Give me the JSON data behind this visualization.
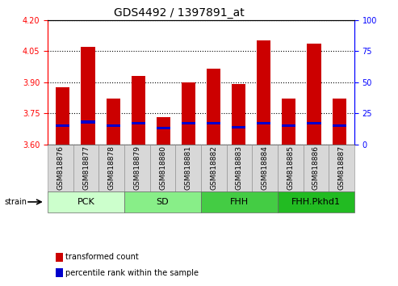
{
  "title": "GDS4492 / 1397891_at",
  "samples": [
    "GSM818876",
    "GSM818877",
    "GSM818878",
    "GSM818879",
    "GSM818880",
    "GSM818881",
    "GSM818882",
    "GSM818883",
    "GSM818884",
    "GSM818885",
    "GSM818886",
    "GSM818887"
  ],
  "transformed_count": [
    3.875,
    4.07,
    3.82,
    3.93,
    3.73,
    3.9,
    3.965,
    3.89,
    4.1,
    3.82,
    4.085,
    3.82
  ],
  "percentile": [
    15,
    18,
    15,
    17,
    13,
    17,
    17,
    14,
    17,
    15,
    17,
    15
  ],
  "ylim_left": [
    3.6,
    4.2
  ],
  "ylim_right": [
    0,
    100
  ],
  "yticks_left": [
    3.6,
    3.75,
    3.9,
    4.05,
    4.2
  ],
  "yticks_right": [
    0,
    25,
    50,
    75,
    100
  ],
  "bar_color": "#cc0000",
  "percentile_color": "#0000cc",
  "bar_bottom": 3.6,
  "groups": [
    {
      "label": "PCK",
      "start": 0,
      "end": 3,
      "color": "#ccffcc"
    },
    {
      "label": "SD",
      "start": 3,
      "end": 6,
      "color": "#88ee88"
    },
    {
      "label": "FHH",
      "start": 6,
      "end": 9,
      "color": "#44cc44"
    },
    {
      "label": "FHH.Pkhd1",
      "start": 9,
      "end": 12,
      "color": "#22bb22"
    }
  ],
  "legend_items": [
    {
      "label": "transformed count",
      "color": "#cc0000"
    },
    {
      "label": "percentile rank within the sample",
      "color": "#0000cc"
    }
  ],
  "title_fontsize": 10,
  "tick_fontsize": 7,
  "sample_fontsize": 6.5,
  "group_label_fontsize": 8,
  "strain_label": "strain"
}
